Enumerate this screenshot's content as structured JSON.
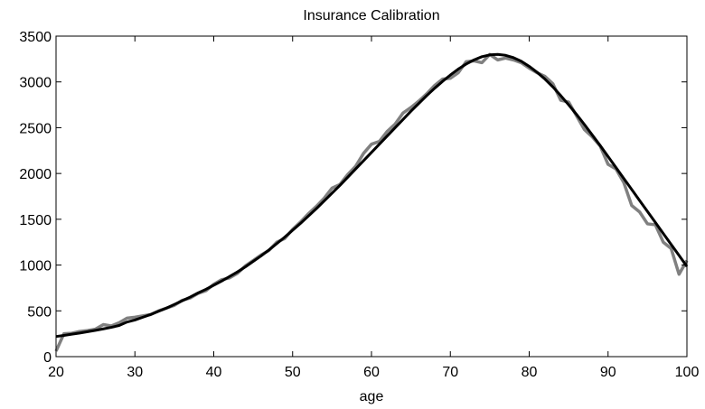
{
  "chart_data": {
    "type": "line",
    "title": "Insurance Calibration",
    "xlabel": "age",
    "x": [
      20,
      21,
      22,
      23,
      24,
      25,
      26,
      27,
      28,
      29,
      30,
      31,
      32,
      33,
      34,
      35,
      36,
      37,
      38,
      39,
      40,
      41,
      42,
      43,
      44,
      45,
      46,
      47,
      48,
      49,
      50,
      51,
      52,
      53,
      54,
      55,
      56,
      57,
      58,
      59,
      60,
      61,
      62,
      63,
      64,
      65,
      66,
      67,
      68,
      69,
      70,
      71,
      72,
      73,
      74,
      75,
      76,
      77,
      78,
      79,
      80,
      81,
      82,
      83,
      84,
      85,
      86,
      87,
      88,
      89,
      90,
      91,
      92,
      93,
      94,
      95,
      96,
      97,
      98,
      99,
      100
    ],
    "series": [
      {
        "color": "#808080",
        "width": 3.5,
        "values": [
          60,
          250,
          255,
          275,
          285,
          300,
          350,
          335,
          370,
          420,
          430,
          445,
          460,
          500,
          530,
          560,
          615,
          640,
          690,
          720,
          790,
          840,
          860,
          910,
          990,
          1050,
          1110,
          1160,
          1250,
          1290,
          1390,
          1470,
          1560,
          1640,
          1730,
          1840,
          1880,
          1990,
          2080,
          2220,
          2320,
          2350,
          2460,
          2540,
          2660,
          2720,
          2790,
          2870,
          2960,
          3030,
          3040,
          3100,
          3220,
          3230,
          3210,
          3300,
          3240,
          3260,
          3240,
          3210,
          3150,
          3100,
          3060,
          2980,
          2800,
          2780,
          2630,
          2480,
          2400,
          2300,
          2100,
          2050,
          1900,
          1650,
          1580,
          1450,
          1440,
          1250,
          1180,
          900,
          1050
        ]
      },
      {
        "color": "#000000",
        "width": 3,
        "values": [
          220,
          232,
          245,
          258,
          272,
          287,
          303,
          320,
          340,
          378,
          400,
          430,
          460,
          495,
          530,
          570,
          610,
          650,
          695,
          735,
          780,
          825,
          875,
          925,
          980,
          1040,
          1100,
          1165,
          1235,
          1305,
          1380,
          1455,
          1535,
          1615,
          1700,
          1785,
          1870,
          1960,
          2050,
          2140,
          2230,
          2320,
          2410,
          2500,
          2590,
          2680,
          2765,
          2850,
          2930,
          3005,
          3075,
          3140,
          3195,
          3240,
          3275,
          3295,
          3300,
          3290,
          3265,
          3225,
          3170,
          3105,
          3030,
          2945,
          2850,
          2750,
          2645,
          2535,
          2420,
          2305,
          2185,
          2065,
          1945,
          1825,
          1705,
          1585,
          1465,
          1345,
          1225,
          1105,
          985
        ]
      }
    ],
    "xlim": [
      20,
      100
    ],
    "ylim": [
      0,
      3500
    ],
    "xticks": [
      20,
      30,
      40,
      50,
      60,
      70,
      80,
      90,
      100
    ],
    "yticks": [
      0,
      500,
      1000,
      1500,
      2000,
      2500,
      3000,
      3500
    ]
  }
}
